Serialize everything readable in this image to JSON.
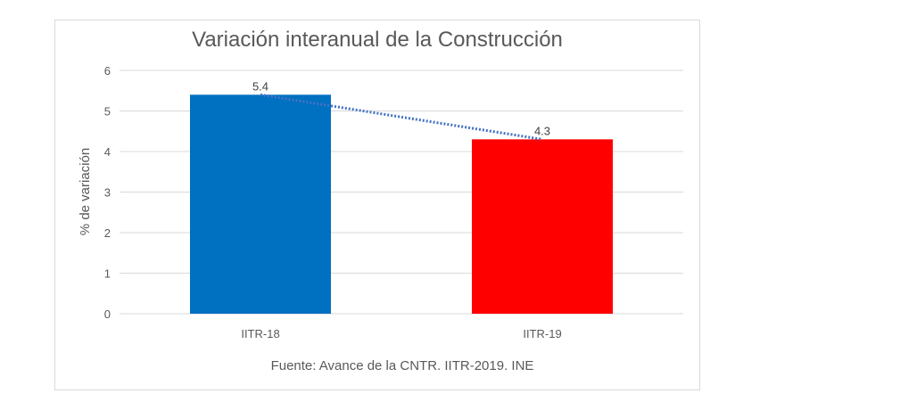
{
  "chart_data": {
    "type": "bar",
    "title": "Variación interanual de la Construcción",
    "xlabel": "",
    "ylabel": "% de variación",
    "categories": [
      "IITR-18",
      "IITR-19"
    ],
    "values": [
      5.4,
      4.3
    ],
    "data_labels": [
      "5.4",
      "4.3"
    ],
    "bar_colors": [
      "#0070c0",
      "#ff0000"
    ],
    "ylim": [
      0,
      6
    ],
    "yticks": [
      0,
      1,
      2,
      3,
      4,
      5,
      6
    ],
    "grid": true,
    "legend": "none",
    "trendline": {
      "style": "dotted",
      "color": "#4472c4"
    },
    "source": "Fuente: Avance de la CNTR. IITR-2019. INE"
  }
}
